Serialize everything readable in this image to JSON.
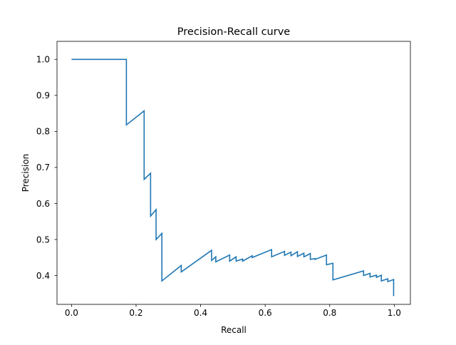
{
  "chart_data": {
    "type": "line",
    "title": "Precision-Recall curve",
    "xlabel": "Recall",
    "ylabel": "Precision",
    "xlim": [
      -0.045,
      1.05
    ],
    "ylim": [
      0.32,
      1.05
    ],
    "xticks": [
      0.0,
      0.2,
      0.4,
      0.6,
      0.8,
      1.0
    ],
    "xtick_labels": [
      "0.0",
      "0.2",
      "0.4",
      "0.6",
      "0.8",
      "1.0"
    ],
    "yticks": [
      0.4,
      0.5,
      0.6,
      0.7,
      0.8,
      0.9,
      1.0
    ],
    "ytick_labels": [
      "0.4",
      "0.5",
      "0.6",
      "0.7",
      "0.8",
      "0.9",
      "1.0"
    ],
    "grid": false,
    "legend": "none",
    "line_color": "#1f77b4",
    "series": [
      {
        "x": [
          0.0,
          0.17,
          0.17,
          0.225,
          0.225,
          0.245,
          0.245,
          0.262,
          0.262,
          0.28,
          0.28,
          0.34,
          0.34,
          0.434,
          0.434,
          0.447,
          0.447,
          0.49,
          0.49,
          0.51,
          0.51,
          0.53,
          0.53,
          0.56,
          0.56,
          0.62,
          0.62,
          0.66,
          0.66,
          0.68,
          0.68,
          0.7,
          0.7,
          0.72,
          0.72,
          0.74,
          0.74,
          0.755,
          0.755,
          0.79,
          0.79,
          0.81,
          0.81,
          0.905,
          0.905,
          0.925,
          0.925,
          0.945,
          0.945,
          0.96,
          0.96,
          0.98,
          0.98,
          0.998,
          0.998
        ],
        "y": [
          1.0,
          1.0,
          0.818,
          0.857,
          0.667,
          0.684,
          0.565,
          0.583,
          0.5,
          0.517,
          0.385,
          0.428,
          0.41,
          0.47,
          0.442,
          0.452,
          0.438,
          0.457,
          0.44,
          0.452,
          0.44,
          0.446,
          0.44,
          0.455,
          0.45,
          0.472,
          0.452,
          0.467,
          0.456,
          0.465,
          0.455,
          0.466,
          0.453,
          0.462,
          0.452,
          0.461,
          0.445,
          0.447,
          0.445,
          0.457,
          0.43,
          0.434,
          0.388,
          0.413,
          0.4,
          0.406,
          0.396,
          0.401,
          0.395,
          0.401,
          0.385,
          0.391,
          0.383,
          0.389,
          0.343
        ]
      }
    ]
  }
}
